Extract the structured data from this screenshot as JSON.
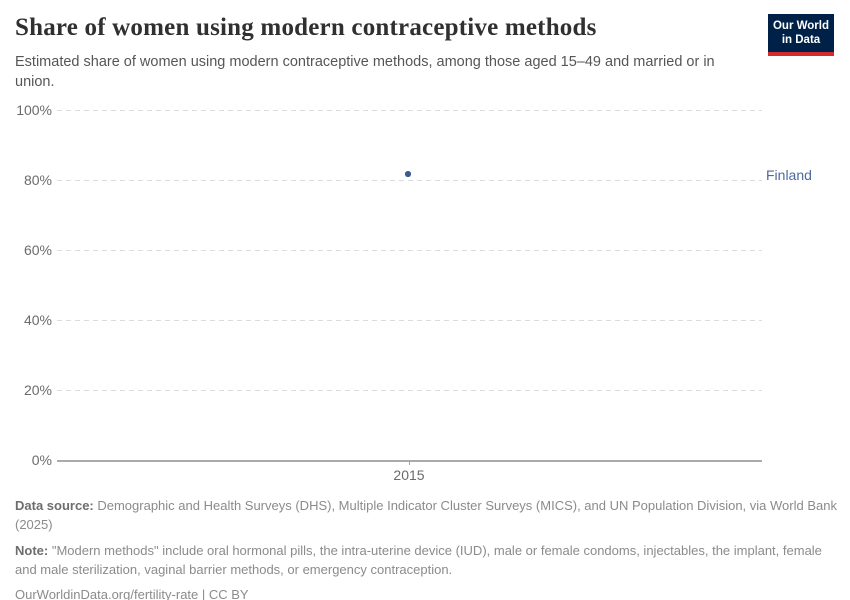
{
  "header": {
    "title": "Share of women using modern contraceptive methods",
    "subtitle": "Estimated share of women using modern contraceptive methods, among those aged 15–49 and married or in union.",
    "logo": {
      "line1": "Our World",
      "line2": "in Data",
      "bg_color": "#002147",
      "accent_color": "#d42b2f"
    }
  },
  "chart_data": {
    "type": "scatter",
    "title": "Share of women using modern contraceptive methods",
    "xlabel": "",
    "ylabel": "",
    "series": [
      {
        "name": "Finland",
        "color": "#3d5a8f",
        "label_color": "#4c6a9c",
        "x": [
          2015
        ],
        "values": [
          81.7
        ]
      }
    ],
    "x_ticks": [
      "2015"
    ],
    "y_ticks": [
      "100%",
      "80%",
      "60%",
      "40%",
      "20%",
      "0%"
    ],
    "ylim": [
      0,
      100
    ],
    "grid": "horizontal-dashed",
    "legend_position": "entity-label-right"
  },
  "footer": {
    "data_source_label": "Data source:",
    "data_source_text": " Demographic and Health Surveys (DHS), Multiple Indicator Cluster Surveys (MICS), and UN Population Division, via World Bank (2025)",
    "note_label": "Note:",
    "note_text": " \"Modern methods\" include oral hormonal pills, the intra-uterine device (IUD), male or female condoms, injectables, the implant, female and male sterilization, vaginal barrier methods, or emergency contraception.",
    "citation": "OurWorldinData.org/fertility-rate | CC BY"
  }
}
